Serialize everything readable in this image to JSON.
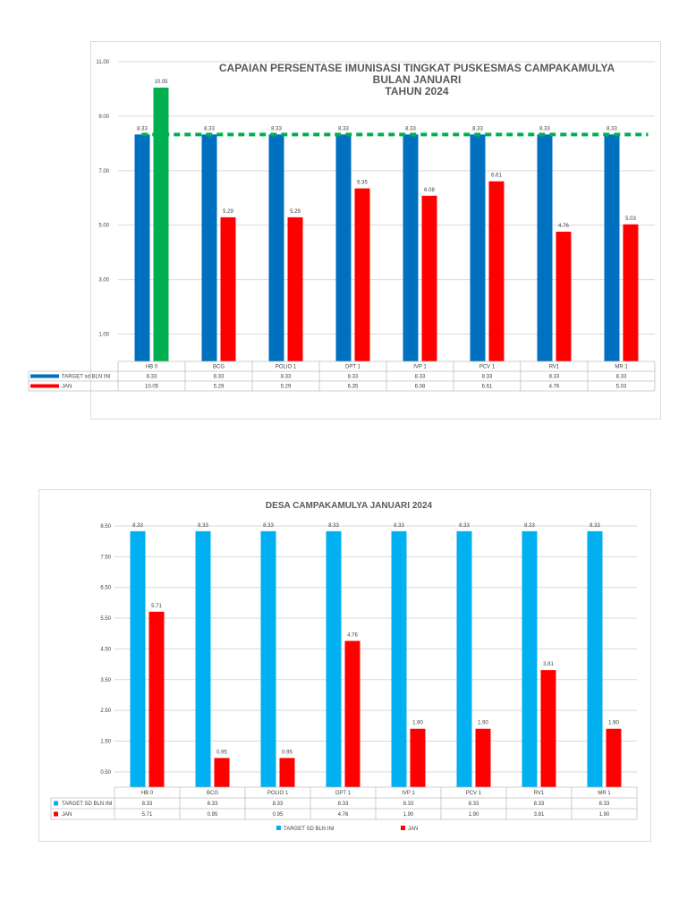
{
  "chart_data": [
    {
      "type": "bar",
      "title": "CAPAIAN PERSENTASE IMUNISASI TINGKAT PUSKESMAS CAMPAKAMULYA",
      "subtitle_lines": [
        "BULAN JANUARI",
        "TAHUN 2024"
      ],
      "categories": [
        "HB 0",
        "BCG",
        "POLIO 1",
        "DPT 1",
        "IVP 1",
        "PCV 1",
        "RV1",
        "MR 1"
      ],
      "series": [
        {
          "name": "TARGET sd BLN INI",
          "color": "#0070c0",
          "values": [
            8.33,
            8.33,
            8.33,
            8.33,
            8.33,
            8.33,
            8.33,
            8.33
          ],
          "labels": [
            "8.33",
            "8.33",
            "8.33",
            "8.33",
            "8.33",
            "8.33",
            "8.33",
            "8.33"
          ]
        },
        {
          "name": "JAN",
          "color": "#ff0000",
          "highlight": {
            "index": 0,
            "color": "#00b050"
          },
          "values": [
            10.05,
            5.29,
            5.29,
            6.35,
            6.08,
            6.61,
            4.76,
            5.03
          ],
          "labels": [
            "10.05",
            "5.29",
            "5.29",
            "6.35",
            "6.08",
            "6.61",
            "4.76",
            "5.03"
          ]
        }
      ],
      "target_line": {
        "value": 8.33,
        "color": "#00b050"
      },
      "yticks": [
        "1.00",
        "3.00",
        "5.00",
        "7.00",
        "9.00",
        "11.00"
      ],
      "ylim": [
        0,
        11
      ],
      "grid": true,
      "legend": "data-table"
    },
    {
      "type": "bar",
      "title": "DESA CAMPAKAMULYA JANUARI 2024",
      "subtitle_lines": [],
      "categories": [
        "HB 0",
        "BCG",
        "POLIO 1",
        "DPT 1",
        "IVP 1",
        "PCV 1",
        "RV1",
        "MR 1"
      ],
      "series": [
        {
          "name": "TARGET SD BLN INI",
          "color": "#00b0f0",
          "values": [
            8.33,
            8.33,
            8.33,
            8.33,
            8.33,
            8.33,
            8.33,
            8.33
          ],
          "labels": [
            "8.33",
            "8.33",
            "8.33",
            "8.33",
            "8.33",
            "8.33",
            "8.33",
            "8.33"
          ]
        },
        {
          "name": "JAN",
          "color": "#ff0000",
          "values": [
            5.71,
            0.95,
            0.95,
            4.76,
            1.9,
            1.9,
            3.81,
            1.9
          ],
          "labels": [
            "5.71",
            "0.95",
            "0.95",
            "4.76",
            "1.90",
            "1.90",
            "3.81",
            "1.90"
          ]
        }
      ],
      "yticks": [
        "0.50",
        "1.50",
        "2.50",
        "3.50",
        "4.50",
        "5.50",
        "6.50",
        "7.50",
        "8.50"
      ],
      "ylim": [
        0,
        8.5
      ],
      "grid": true,
      "legend": "bottom"
    }
  ]
}
